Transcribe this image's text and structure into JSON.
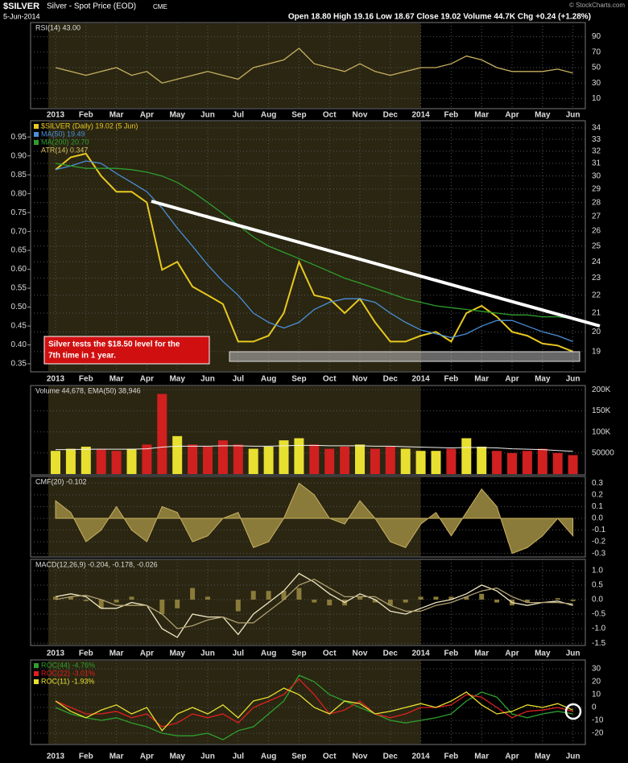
{
  "header": {
    "symbol": "$SILVER",
    "name": "Silver - Spot Price (EOD)",
    "exchange": "CME",
    "date": "5-Jun-2014",
    "quote": "Open 18.80 High 19.16 Low 18.67 Close 19.02 Volume 44.7K Chg +0.24 (+1.28%)",
    "credit": "© StockCharts.com"
  },
  "chart_data": [
    {
      "type": "line",
      "title": "RSI(14) 43.00",
      "categories": [
        "2013",
        null,
        "Feb",
        null,
        "Mar",
        null,
        "Apr",
        null,
        "May",
        null,
        "Jun",
        null,
        "Jul",
        null,
        "Aug",
        null,
        "Sep",
        null,
        "Oct",
        null,
        "Nov",
        null,
        "Dec",
        null,
        "2014",
        null,
        "Feb",
        null,
        "Mar",
        null,
        "Apr",
        null,
        "May",
        null,
        "Jun"
      ],
      "series": [
        {
          "color": "#c8b060",
          "values": [
            50,
            45,
            40,
            45,
            50,
            40,
            45,
            30,
            35,
            40,
            45,
            40,
            35,
            50,
            55,
            60,
            75,
            55,
            50,
            45,
            55,
            45,
            40,
            45,
            50,
            50,
            55,
            65,
            60,
            50,
            45,
            45,
            45,
            48,
            43
          ]
        }
      ],
      "ylim": [
        0,
        100
      ],
      "yticks": [
        10,
        30,
        50,
        70,
        90
      ]
    },
    {
      "type": "line",
      "log_scale": true,
      "categories": [
        "2013",
        null,
        "Feb",
        null,
        "Mar",
        null,
        "Apr",
        null,
        "May",
        null,
        "Jun",
        null,
        "Jul",
        null,
        "Aug",
        null,
        "Sep",
        null,
        "Oct",
        null,
        "Nov",
        null,
        "Dec",
        null,
        "2014",
        null,
        "Feb",
        null,
        "Mar",
        null,
        "Apr",
        null,
        "May",
        null,
        "Jun"
      ],
      "series": [
        {
          "name": "$SILVER (Daily) 19.02 (5 Jun)",
          "color": "#e8c820",
          "values": [
            30.5,
            31.5,
            31.8,
            30.0,
            28.8,
            28.8,
            28.0,
            23.5,
            24.0,
            22.5,
            22.0,
            21.5,
            19.5,
            19.5,
            19.8,
            21.0,
            24.0,
            22.0,
            21.8,
            21.0,
            21.8,
            20.5,
            19.5,
            19.5,
            19.8,
            20.0,
            19.5,
            21.0,
            21.4,
            20.8,
            20.0,
            19.8,
            19.4,
            19.3,
            19.0
          ]
        },
        {
          "name": "MA(50) 19.49",
          "color": "#4a90d9",
          "values": [
            30.5,
            30.8,
            31.2,
            31.0,
            30.2,
            29.5,
            28.8,
            27.6,
            26.2,
            25.0,
            23.8,
            22.8,
            22.0,
            21.0,
            20.5,
            20.2,
            20.5,
            21.2,
            21.6,
            21.8,
            21.8,
            21.6,
            21.0,
            20.5,
            20.1,
            19.9,
            19.7,
            19.9,
            20.3,
            20.6,
            20.6,
            20.3,
            20.0,
            19.8,
            19.5
          ]
        },
        {
          "name": "MA(200) 20.70",
          "color": "#2e9e2e",
          "values": [
            31.0,
            30.8,
            30.6,
            30.6,
            30.6,
            30.5,
            30.3,
            30.0,
            29.5,
            28.8,
            28.0,
            27.2,
            26.4,
            25.6,
            25.0,
            24.6,
            24.2,
            23.8,
            23.4,
            23.0,
            22.7,
            22.4,
            22.1,
            21.8,
            21.6,
            21.4,
            21.3,
            21.2,
            21.1,
            21.0,
            20.9,
            20.9,
            20.8,
            20.8,
            20.7
          ]
        }
      ],
      "atr_label": "ATR(14) 0.347",
      "ylim": [
        18.1,
        34.64
      ],
      "yticks": [
        19,
        20,
        21,
        22,
        23,
        24,
        25,
        26,
        27,
        28,
        29,
        30,
        31,
        32,
        33,
        34
      ],
      "y2lim": [
        0.333,
        0.993
      ],
      "y2ticks": [
        0.95,
        {
          "value": 0.9,
          "label": "0.90"
        },
        0.85,
        {
          "value": 0.8,
          "label": "0.80"
        },
        0.75,
        {
          "value": 0.7,
          "label": "0.70"
        },
        0.65,
        {
          "value": 0.6,
          "label": "0.60"
        },
        0.55,
        {
          "value": 0.5,
          "label": "0.50"
        },
        0.45,
        {
          "value": 0.4,
          "label": "0.40"
        },
        0.35
      ],
      "annotation": [
        "Silver tests the $18.50 level for the",
        "7th time in 1 year."
      ]
    },
    {
      "type": "bar",
      "title": "Volume 44,678, EMA(50) 38,946",
      "up_color": "#e8e030",
      "down_color": "#d02020",
      "series": [
        {
          "values": [
            55000,
            60000,
            65000,
            58000,
            55000,
            60000,
            70000,
            190000,
            90000,
            70000,
            65000,
            80000,
            70000,
            60000,
            65000,
            80000,
            85000,
            70000,
            60000,
            65000,
            70000,
            60000,
            65000,
            60000,
            55000,
            55000,
            60000,
            85000,
            65000,
            55000,
            50000,
            55000,
            60000,
            50000,
            45000
          ]
        },
        {
          "color": "#f0f0f0",
          "values": [
            58000,
            58000,
            59000,
            59000,
            59000,
            59000,
            60000,
            64000,
            66000,
            66000,
            66000,
            67000,
            67000,
            66000,
            66000,
            67000,
            68000,
            68000,
            67000,
            67000,
            67000,
            66000,
            66000,
            65000,
            64000,
            63000,
            62000,
            63000,
            63000,
            62000,
            60000,
            59000,
            58000,
            56000,
            54000
          ]
        }
      ],
      "ylim": [
        0,
        210000
      ],
      "yticks": [
        50000,
        {
          "value": 100000,
          "label": "100K"
        },
        {
          "value": 150000,
          "label": "150K"
        },
        {
          "value": 200000,
          "label": "200K"
        }
      ]
    },
    {
      "type": "area",
      "title": "CMF(20) -0.102",
      "color": "#8a7b3a",
      "values": [
        0.15,
        0.05,
        -0.2,
        -0.1,
        0.1,
        -0.1,
        -0.2,
        0.1,
        0.05,
        -0.2,
        -0.15,
        0.0,
        0.05,
        -0.25,
        -0.2,
        0.0,
        0.3,
        0.2,
        0.0,
        -0.05,
        0.15,
        0.0,
        -0.2,
        -0.25,
        -0.05,
        0.05,
        -0.15,
        0.05,
        0.25,
        0.1,
        -0.3,
        -0.25,
        -0.15,
        0.0,
        -0.15
      ],
      "ylim": [
        -0.33,
        0.35
      ],
      "yticks": [
        0.3,
        0.2,
        0.1,
        {
          "value": 0,
          "label": "0.0"
        },
        -0.1,
        -0.2,
        -0.3
      ]
    },
    {
      "type": "line",
      "title": "MACD(12,26,9) -0.204, -0.178, -0.026",
      "categories": [
        "2013",
        null,
        "Feb",
        null,
        "Mar",
        null,
        "Apr",
        null,
        "May",
        null,
        "Jun",
        null,
        "Jul",
        null,
        "Aug",
        null,
        "Sep",
        null,
        "Oct",
        null,
        "Nov",
        null,
        "Dec",
        null,
        "2014",
        null,
        "Feb",
        null,
        "Mar",
        null,
        "Apr",
        null,
        "May",
        null,
        "Jun"
      ],
      "series": [
        {
          "type": "bar",
          "color": "#8a7b3a",
          "values": [
            0.1,
            0.1,
            -0.05,
            -0.3,
            -0.1,
            0.1,
            0,
            -0.5,
            -0.3,
            0.4,
            0.1,
            0,
            -0.4,
            0.3,
            0.3,
            0.3,
            0.4,
            -0.1,
            -0.2,
            -0.2,
            0.1,
            -0.1,
            -0.2,
            -0.1,
            0.1,
            0.1,
            0.1,
            0.1,
            0.2,
            -0.1,
            -0.2,
            -0.1,
            0,
            0.05,
            -0.05
          ]
        },
        {
          "color": "#f0e6c0",
          "values": [
            0.1,
            0.2,
            0.1,
            -0.3,
            -0.3,
            -0.1,
            -0.2,
            -1.0,
            -1.3,
            -0.5,
            -0.6,
            -0.6,
            -1.2,
            -0.5,
            -0.1,
            0.3,
            0.9,
            0.6,
            0.2,
            -0.1,
            0.2,
            0.0,
            -0.4,
            -0.5,
            -0.3,
            -0.1,
            0.0,
            0.2,
            0.5,
            0.3,
            -0.1,
            -0.2,
            -0.1,
            -0.05,
            -0.2
          ]
        },
        {
          "color": "#b0a070",
          "values": [
            0.0,
            0.1,
            0.15,
            0.0,
            -0.2,
            -0.2,
            -0.2,
            -0.5,
            -1.0,
            -0.9,
            -0.7,
            -0.6,
            -0.8,
            -0.8,
            -0.4,
            0.0,
            0.5,
            0.7,
            0.4,
            0.1,
            0.1,
            0.1,
            -0.2,
            -0.4,
            -0.4,
            -0.2,
            -0.1,
            0.1,
            0.3,
            0.4,
            0.1,
            -0.1,
            -0.1,
            -0.1,
            -0.15
          ]
        }
      ],
      "ylim": [
        -1.58,
        1.33
      ],
      "yticks": [
        {
          "value": 1,
          "label": "1.0"
        },
        0.5,
        {
          "value": 0,
          "label": "0.0"
        },
        -0.5,
        {
          "value": -1,
          "label": "-1.0"
        },
        -1.5
      ]
    },
    {
      "type": "line",
      "categories": [
        "2013",
        null,
        "Feb",
        null,
        "Mar",
        null,
        "Apr",
        null,
        "May",
        null,
        "Jun",
        null,
        "Jul",
        null,
        "Aug",
        null,
        "Sep",
        null,
        "Oct",
        null,
        "Nov",
        null,
        "Dec",
        null,
        "2014",
        null,
        "Feb",
        null,
        "Mar",
        null,
        "Apr",
        null,
        "May",
        null,
        "Jun"
      ],
      "series": [
        {
          "name": "ROC(44) -4.76%",
          "color": "#2ea02e",
          "values": [
            0,
            -5,
            -8,
            -10,
            -8,
            -12,
            -15,
            -20,
            -22,
            -22,
            -20,
            -25,
            -18,
            -15,
            -5,
            5,
            25,
            20,
            10,
            5,
            0,
            -5,
            -10,
            -12,
            -10,
            -8,
            -5,
            5,
            12,
            8,
            -5,
            -8,
            -5,
            -3,
            -5
          ]
        },
        {
          "name": "ROC(22) -3.01%",
          "color": "#e02020",
          "values": [
            5,
            0,
            -5,
            -5,
            -3,
            -8,
            -5,
            -15,
            -12,
            -5,
            -8,
            -5,
            -12,
            0,
            5,
            10,
            22,
            10,
            -5,
            -2,
            5,
            -5,
            -8,
            -5,
            0,
            0,
            2,
            10,
            8,
            0,
            -8,
            -3,
            -2,
            0,
            -3
          ]
        },
        {
          "name": "ROC(11) -1.93%",
          "color": "#e8e030",
          "values": [
            5,
            -3,
            -8,
            -2,
            2,
            -5,
            0,
            -18,
            -5,
            0,
            -5,
            2,
            -8,
            5,
            8,
            15,
            10,
            0,
            -5,
            5,
            3,
            -5,
            -3,
            0,
            3,
            0,
            5,
            12,
            2,
            -5,
            -3,
            2,
            0,
            3,
            -2
          ]
        }
      ],
      "ylim": [
        -28.75,
        35.6
      ],
      "yticks": [
        30,
        20,
        10,
        0,
        -10,
        -20
      ]
    }
  ]
}
